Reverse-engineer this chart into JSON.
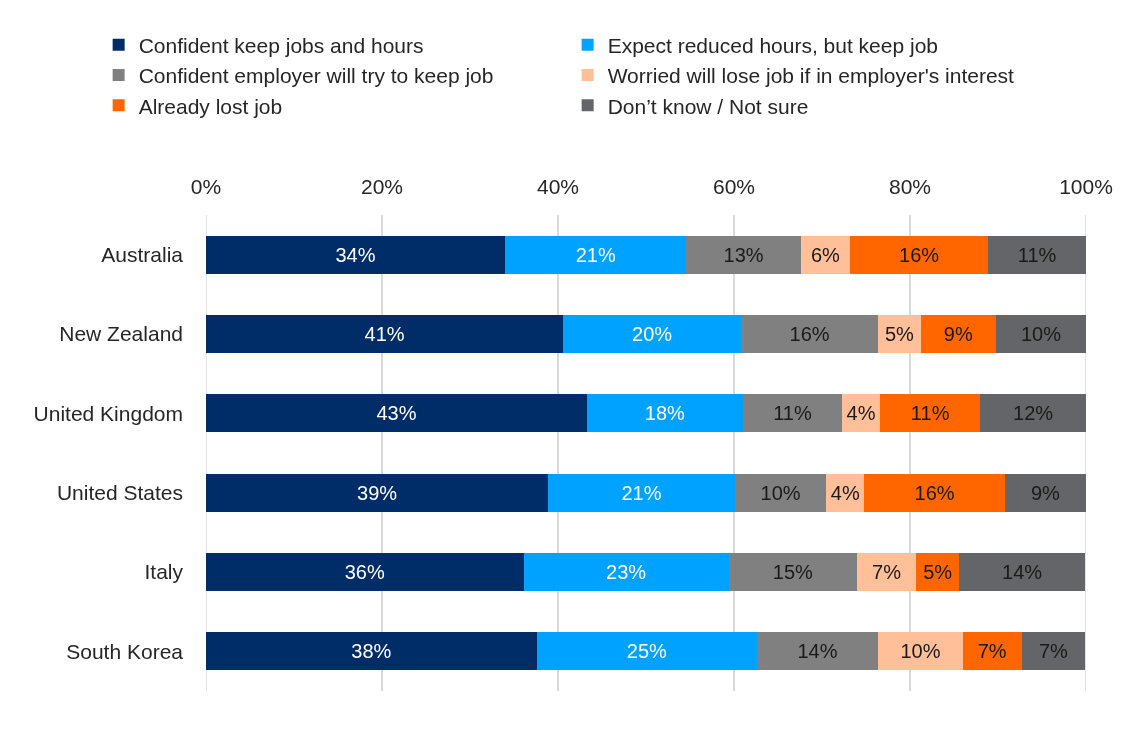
{
  "chart_data": {
    "type": "bar",
    "orientation": "horizontal",
    "stacked": true,
    "categories": [
      "Australia",
      "New Zealand",
      "United Kingdom",
      "United States",
      "Italy",
      "South Korea"
    ],
    "series": [
      {
        "name": "Confident keep jobs and hours",
        "color": "#002d67",
        "values": [
          34.0,
          40.6,
          43.3,
          38.9,
          36.1,
          37.6
        ],
        "value_labels": [
          "34%",
          "41%",
          "43%",
          "39%",
          "36%",
          "38%"
        ]
      },
      {
        "name": "Expect reduced hours, but keep job",
        "color": "#00a2ff",
        "values": [
          20.6,
          20.2,
          17.7,
          21.2,
          23.3,
          25.0
        ],
        "value_labels": [
          "21%",
          "20%",
          "18%",
          "21%",
          "23%",
          "25%"
        ]
      },
      {
        "name": "Confident employer will try to keep job",
        "color": "#808080",
        "values": [
          13.0,
          15.6,
          11.3,
          10.4,
          14.6,
          13.8
        ],
        "value_labels": [
          "13%",
          "16%",
          "11%",
          "10%",
          "15%",
          "14%"
        ]
      },
      {
        "name": "Worried will lose job if in employer's interest",
        "color": "#ffbf99",
        "values": [
          5.6,
          4.8,
          4.3,
          4.3,
          6.7,
          9.6
        ],
        "value_labels": [
          "6%",
          "5%",
          "4%",
          "4%",
          "7%",
          "10%"
        ]
      },
      {
        "name": "Already lost job",
        "color": "#ff6600",
        "values": [
          15.7,
          8.6,
          11.4,
          16.0,
          4.9,
          6.7
        ],
        "value_labels": [
          "16%",
          "9%",
          "11%",
          "16%",
          "5%",
          "7%"
        ]
      },
      {
        "name": "Don’t know / Not sure",
        "color": "#646569",
        "values": [
          11.1,
          10.2,
          12.0,
          9.2,
          14.3,
          7.2
        ],
        "value_labels": [
          "11%",
          "10%",
          "12%",
          "9%",
          "14%",
          "7%"
        ]
      }
    ],
    "xlim": [
      0,
      100
    ],
    "xticks": [
      {
        "value": 0,
        "label": "0%"
      },
      {
        "value": 20,
        "label": "20%"
      },
      {
        "value": 40,
        "label": "40%"
      },
      {
        "value": 60,
        "label": "60%"
      },
      {
        "value": 80,
        "label": "80%"
      },
      {
        "value": 100,
        "label": "100%"
      }
    ],
    "grid": "x",
    "legend": "top"
  }
}
